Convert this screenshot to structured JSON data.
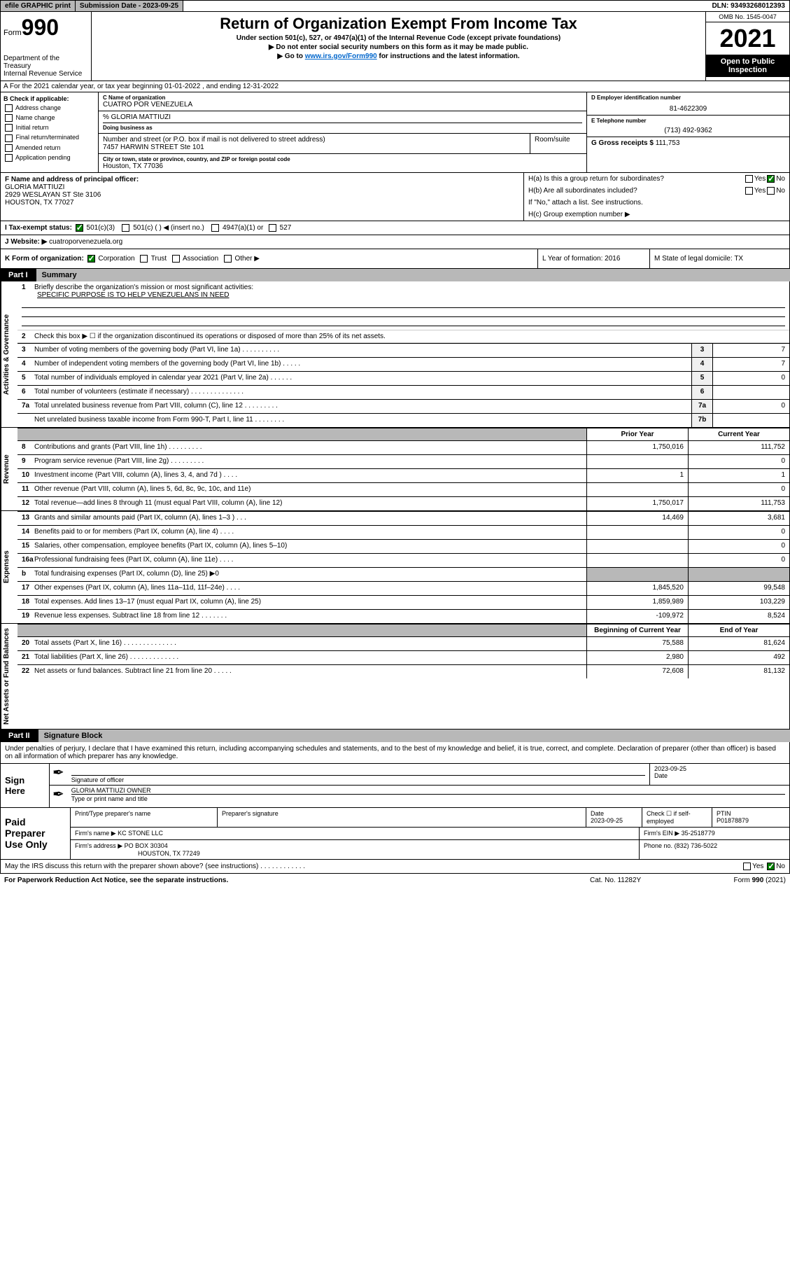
{
  "topbar": {
    "efile": "efile GRAPHIC print",
    "subdate_label": "Submission Date - ",
    "subdate": "2023-09-25",
    "dln_label": "DLN: ",
    "dln": "93493268012393"
  },
  "header": {
    "form_prefix": "Form",
    "form_num": "990",
    "dept": "Department of the Treasury",
    "service": "Internal Revenue Service",
    "title": "Return of Organization Exempt From Income Tax",
    "subtitle": "Under section 501(c), 527, or 4947(a)(1) of the Internal Revenue Code (except private foundations)",
    "note1": "▶ Do not enter social security numbers on this form as it may be made public.",
    "note2_prefix": "▶ Go to ",
    "note2_link": "www.irs.gov/Form990",
    "note2_suffix": " for instructions and the latest information.",
    "omb": "OMB No. 1545-0047",
    "year": "2021",
    "inspection": "Open to Public Inspection"
  },
  "sectionA": {
    "text": "A For the 2021 calendar year, or tax year beginning 01-01-2022   , and ending 12-31-2022"
  },
  "colB": {
    "header": "B Check if applicable:",
    "items": [
      "Address change",
      "Name change",
      "Initial return",
      "Final return/terminated",
      "Amended return",
      "Application pending"
    ]
  },
  "colC": {
    "name_label": "C Name of organization",
    "name": "CUATRO POR VENEZUELA",
    "care": "% GLORIA MATTIUZI",
    "dba_label": "Doing business as",
    "addr_label": "Number and street (or P.O. box if mail is not delivered to street address)",
    "room_label": "Room/suite",
    "addr": "7457 HARWIN STREET Ste 101",
    "city_label": "City or town, state or province, country, and ZIP or foreign postal code",
    "city": "Houston, TX  77036"
  },
  "colD": {
    "label": "D Employer identification number",
    "ein": "81-4622309"
  },
  "colE": {
    "label": "E Telephone number",
    "phone": "(713) 492-9362"
  },
  "colG": {
    "label": "G Gross receipts $",
    "amount": "111,753"
  },
  "rowF": {
    "label": "F Name and address of principal officer:",
    "name": "GLORIA MATTIUZI",
    "addr1": "2929 WESLAYAN ST Ste 3106",
    "addr2": "HOUSTON, TX  77027"
  },
  "rowH": {
    "ha": "H(a)  Is this a group return for subordinates?",
    "hb": "H(b)  Are all subordinates included?",
    "hb_note": "If \"No,\" attach a list. See instructions.",
    "hc": "H(c)  Group exemption number ▶"
  },
  "rowI": {
    "label": "I   Tax-exempt status:",
    "opt1": "501(c)(3)",
    "opt2": "501(c) (   ) ◀ (insert no.)",
    "opt3": "4947(a)(1) or",
    "opt4": "527"
  },
  "rowJ": {
    "label": "J   Website: ▶",
    "value": "cuatroporvenezuela.org"
  },
  "rowK": {
    "label": "K Form of organization:",
    "opts": [
      "Corporation",
      "Trust",
      "Association",
      "Other ▶"
    ],
    "l": "L Year of formation: 2016",
    "m": "M State of legal domicile: TX"
  },
  "part1": {
    "num": "Part I",
    "title": "Summary",
    "section1_label": "Activities & Governance",
    "section2_label": "Revenue",
    "section3_label": "Expenses",
    "section4_label": "Net Assets or Fund Balances",
    "line1_label": "Briefly describe the organization's mission or most significant activities:",
    "line1_text": "SPECIFIC PURPOSE IS TO HELP VENEZUELANS IN NEED",
    "line2": "Check this box ▶ ☐  if the organization discontinued its operations or disposed of more than 25% of its net assets.",
    "lines_gov": [
      {
        "n": "3",
        "text": "Number of voting members of the governing body (Part VI, line 1a)   .    .    .    .    .    .    .    .    .    .",
        "box": "3",
        "val": "7"
      },
      {
        "n": "4",
        "text": "Number of independent voting members of the governing body (Part VI, line 1b)   .    .    .    .    .",
        "box": "4",
        "val": "7"
      },
      {
        "n": "5",
        "text": "Total number of individuals employed in calendar year 2021 (Part V, line 2a)   .    .    .    .    .    .",
        "box": "5",
        "val": "0"
      },
      {
        "n": "6",
        "text": "Total number of volunteers (estimate if necessary)   .    .    .    .    .    .    .    .    .    .    .    .    .    .",
        "box": "6",
        "val": ""
      },
      {
        "n": "7a",
        "text": "Total unrelated business revenue from Part VIII, column (C), line 12   .    .    .    .    .    .    .    .    .",
        "box": "7a",
        "val": "0"
      },
      {
        "n": "",
        "text": "Net unrelated business taxable income from Form 990-T, Part I, line 11   .    .    .    .    .    .    .    .",
        "box": "7b",
        "val": ""
      }
    ],
    "col_prior": "Prior Year",
    "col_current": "Current Year",
    "lines_rev": [
      {
        "n": "8",
        "text": "Contributions and grants (Part VIII, line 1h)    .    .    .    .    .    .    .    .    .",
        "p": "1,750,016",
        "c": "111,752"
      },
      {
        "n": "9",
        "text": "Program service revenue (Part VIII, line 2g)    .    .    .    .    .    .    .    .    .",
        "p": "",
        "c": "0"
      },
      {
        "n": "10",
        "text": "Investment income (Part VIII, column (A), lines 3, 4, and 7d )    .    .    .    .",
        "p": "1",
        "c": "1"
      },
      {
        "n": "11",
        "text": "Other revenue (Part VIII, column (A), lines 5, 6d, 8c, 9c, 10c, and 11e)",
        "p": "",
        "c": "0"
      },
      {
        "n": "12",
        "text": "Total revenue—add lines 8 through 11 (must equal Part VIII, column (A), line 12)",
        "p": "1,750,017",
        "c": "111,753"
      }
    ],
    "lines_exp": [
      {
        "n": "13",
        "text": "Grants and similar amounts paid (Part IX, column (A), lines 1–3 )    .    .    .",
        "p": "14,469",
        "c": "3,681"
      },
      {
        "n": "14",
        "text": "Benefits paid to or for members (Part IX, column (A), line 4)    .    .    .    .",
        "p": "",
        "c": "0"
      },
      {
        "n": "15",
        "text": "Salaries, other compensation, employee benefits (Part IX, column (A), lines 5–10)",
        "p": "",
        "c": "0"
      },
      {
        "n": "16a",
        "text": "Professional fundraising fees (Part IX, column (A), line 11e)    .    .    .    .",
        "p": "",
        "c": "0"
      },
      {
        "n": "b",
        "text": "Total fundraising expenses (Part IX, column (D), line 25) ▶0",
        "p": null,
        "c": null
      },
      {
        "n": "17",
        "text": "Other expenses (Part IX, column (A), lines 11a–11d, 11f–24e)    .    .    .    .",
        "p": "1,845,520",
        "c": "99,548"
      },
      {
        "n": "18",
        "text": "Total expenses. Add lines 13–17 (must equal Part IX, column (A), line 25)",
        "p": "1,859,989",
        "c": "103,229"
      },
      {
        "n": "19",
        "text": "Revenue less expenses. Subtract line 18 from line 12    .    .    .    .    .    .    .",
        "p": "-109,972",
        "c": "8,524"
      }
    ],
    "col_begin": "Beginning of Current Year",
    "col_end": "End of Year",
    "lines_net": [
      {
        "n": "20",
        "text": "Total assets (Part X, line 16)   .    .    .    .    .    .    .    .    .    .    .    .    .    .",
        "p": "75,588",
        "c": "81,624"
      },
      {
        "n": "21",
        "text": "Total liabilities (Part X, line 26)    .    .    .    .    .    .    .    .    .    .    .    .    .",
        "p": "2,980",
        "c": "492"
      },
      {
        "n": "22",
        "text": "Net assets or fund balances. Subtract line 21 from line 20    .    .    .    .    .",
        "p": "72,608",
        "c": "81,132"
      }
    ]
  },
  "part2": {
    "num": "Part II",
    "title": "Signature Block",
    "decl": "Under penalties of perjury, I declare that I have examined this return, including accompanying schedules and statements, and to the best of my knowledge and belief, it is true, correct, and complete. Declaration of preparer (other than officer) is based on all information of which preparer has any knowledge."
  },
  "sign": {
    "label": "Sign Here",
    "sig_label": "Signature of officer",
    "date_label": "Date",
    "date": "2023-09-25",
    "name": "GLORIA MATTIUZI  OWNER",
    "name_label": "Type or print name and title"
  },
  "preparer": {
    "label": "Paid Preparer Use Only",
    "h1": "Print/Type preparer's name",
    "h2": "Preparer's signature",
    "h3": "Date",
    "h3_val": "2023-09-25",
    "h4": "Check ☐ if self-employed",
    "h5": "PTIN",
    "h5_val": "P01878879",
    "firm_label": "Firm's name    ▶",
    "firm": "KC STONE LLC",
    "ein_label": "Firm's EIN ▶",
    "ein": "35-2518779",
    "addr_label": "Firm's address ▶",
    "addr": "PO BOX 30304",
    "addr2": "HOUSTON, TX  77249",
    "phone_label": "Phone no.",
    "phone": "(832) 736-5022"
  },
  "footer": {
    "discuss": "May the IRS discuss this return with the preparer shown above? (see instructions)    .    .    .    .    .    .    .    .    .    .    .    .",
    "pra": "For Paperwork Reduction Act Notice, see the separate instructions.",
    "cat": "Cat. No. 11282Y",
    "form": "Form 990 (2021)"
  }
}
